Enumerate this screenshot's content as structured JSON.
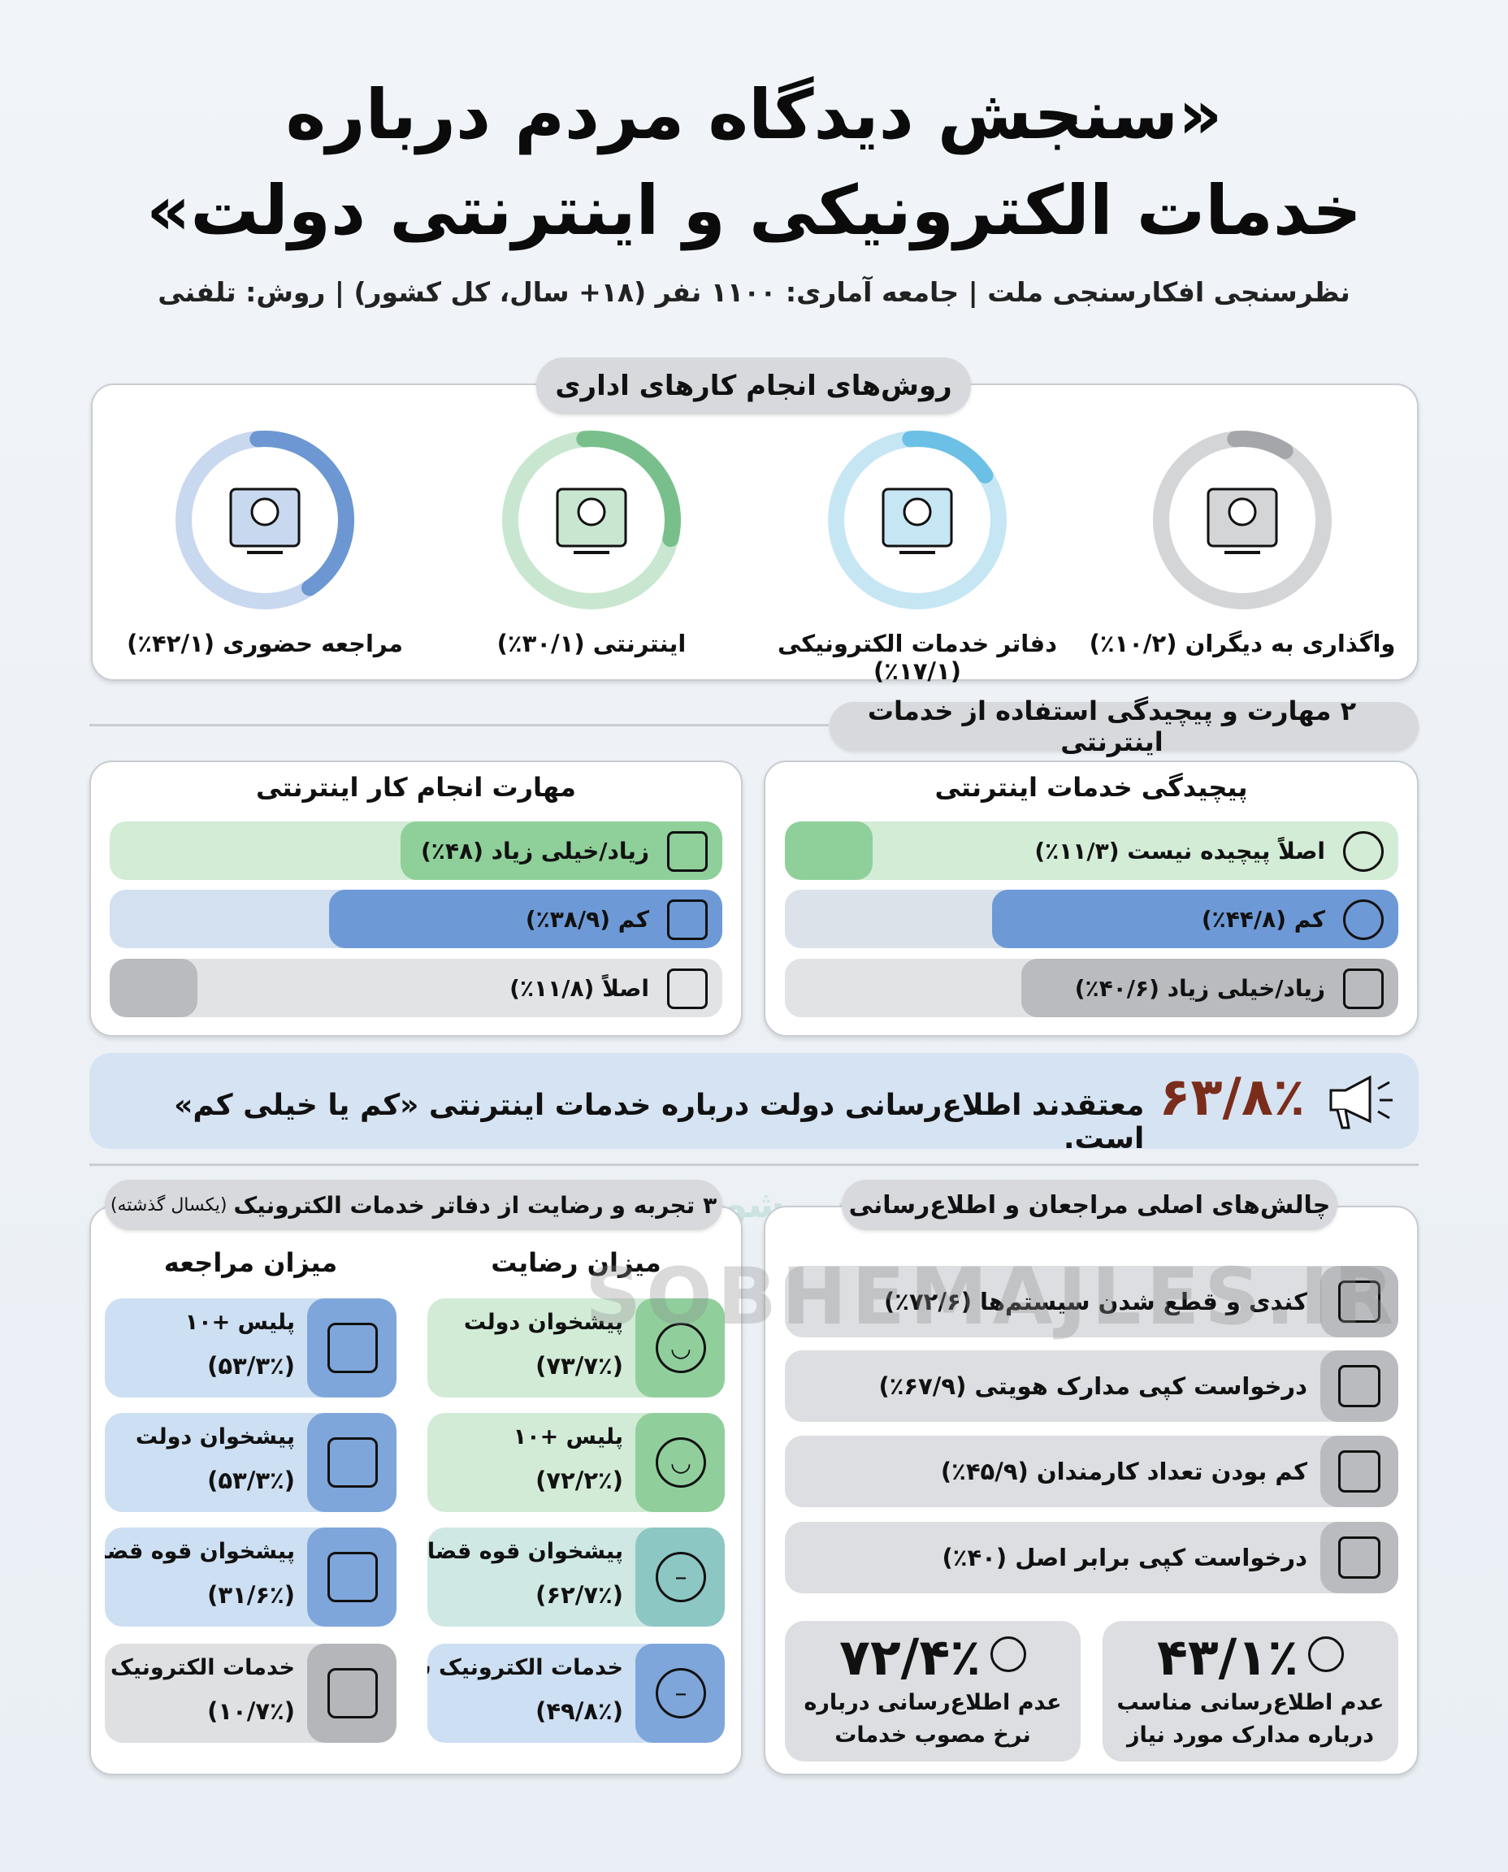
{
  "header": {
    "title_line1": "«سنجش دیدگاه مردم درباره",
    "title_line2": "خدمات الکترونیکی و اینترنتی دولت»",
    "subtitle": "نظرسنجی افکارسنجی ملت | جامعه آماری: ۱۱۰۰ نفر (۱۸+ سال، کل کشور) | روش: تلفنی"
  },
  "section1": {
    "title": "روش‌های انجام کارهای اداری",
    "methods": [
      {
        "label": "واگذاری به دیگران (۱۰/۲٪)",
        "value": 10.2,
        "icon": "people-talking-icon",
        "track": "#d4d5d7",
        "arc": "#a5a6a9"
      },
      {
        "label": "دفاتر خدمات الکترونیکی (۱۷/۱٪)",
        "value": 17.1,
        "icon": "service-kiosk-icon",
        "track": "#c6e6f4",
        "arc": "#6cc0e5"
      },
      {
        "label": "اینترنتی (۳۰/۱٪)",
        "value": 30.1,
        "icon": "globe-monitor-icon",
        "track": "#c9e7d0",
        "arc": "#78bf8c"
      },
      {
        "label": "مراجعه حضوری (۴۲/۱٪)",
        "value": 42.1,
        "icon": "office-desk-clock-icon",
        "track": "#c8d8ef",
        "arc": "#6d97d2"
      }
    ]
  },
  "section2": {
    "title": "۲ مهارت و پیچیدگی استفاده از خدمات اینترنتی",
    "complexity": {
      "title": "پیچیدگی خدمات اینترنتی",
      "items": [
        {
          "label": "اصلاً پیچیده نیست (۱۱/۳٪)",
          "value": 11.3,
          "icon": "check-circle-icon"
        },
        {
          "label": "کم (۴۴/۸٪)",
          "value": 44.8,
          "icon": "question-circle-icon"
        },
        {
          "label": "زیاد/خیلی زیاد (۴۰/۶٪)",
          "value": 40.6,
          "icon": "maze-icon"
        }
      ]
    },
    "skill": {
      "title": "مهارت انجام کار اینترنتی",
      "items": [
        {
          "label": "زیاد/خیلی زیاد (۴۸٪)",
          "value": 48,
          "icon": "brain-icon"
        },
        {
          "label": "کم (۳۸/۹٪)",
          "value": 38.9,
          "icon": "gear-icon"
        },
        {
          "label": "اصلاً (۱۱/۸٪)",
          "value": 11.8,
          "icon": "browser-window-icon"
        }
      ]
    }
  },
  "banner": {
    "percent": "۶۳/۸٪",
    "text": "معتقدند اطلاع‌رسانی دولت درباره خدمات اینترنتی «کم یا خیلی کم» است.",
    "icon": "megaphone-icon"
  },
  "section3": {
    "title": "۳ تجربه و رضایت از دفاتر خدمات الکترونیک",
    "title_note": "(یکسال گذشته)",
    "satisfaction": {
      "heading": "میزان رضایت",
      "items": [
        {
          "name": "پیشخوان دولت",
          "value": "(۷۳/۷٪)",
          "icon": "smile-face-icon"
        },
        {
          "name": "پلیس +۱۰",
          "value": "(۷۲/۲٪)",
          "icon": "smile-face-icon"
        },
        {
          "name": "پیشخوان قوه قضائیه",
          "value": "(۶۲/۷٪)",
          "icon": "neutral-face-icon"
        },
        {
          "name": "خدمات الکترونیک شهر",
          "value": "(۴۹/۸٪)",
          "icon": "neutral-face-icon"
        }
      ]
    },
    "referral": {
      "heading": "میزان مراجعه",
      "items": [
        {
          "name": "پلیس +۱۰",
          "value": "(۵۳/۳٪)",
          "icon": "police-badge-icon"
        },
        {
          "name": "پیشخوان دولت",
          "value": "(۵۳/۳٪)",
          "icon": "iran-emblem-icon"
        },
        {
          "name": "پیشخوان قوه قضائیه",
          "value": "(۳۱/۶٪)",
          "icon": "scales-icon"
        },
        {
          "name": "خدمات الکترونیک شهر",
          "value": "(۱۰/۷٪)",
          "icon": "city-buildings-icon"
        }
      ]
    }
  },
  "section4": {
    "title": "چالش‌های اصلی مراجعان و اطلاع‌رسانی",
    "items": [
      {
        "label": "کندی و قطع شدن سیستم‌ها (۷۲/۶٪)",
        "icon": "warning-icon"
      },
      {
        "label": "درخواست کپی مدارک هویتی (۶۷/۹٪)",
        "icon": "id-card-icon"
      },
      {
        "label": "کم بودن تعداد کارمندان (۴۵/۹٪)",
        "icon": "staff-group-icon"
      },
      {
        "label": "درخواست کپی برابر اصل (۴۰٪)",
        "icon": "stamped-document-icon"
      }
    ],
    "stats": [
      {
        "value": "۴۳/۱٪",
        "line1": "عدم اطلاع‌رسانی مناسب",
        "line2": "درباره مدارک مورد نیاز",
        "icon": "list-bubble-icon"
      },
      {
        "value": "۷۲/۴٪",
        "line1": "عدم اطلاع‌رسانی درباره",
        "line2": "نرخ مصوب خدمات",
        "icon": "info-bubble-icon"
      }
    ]
  },
  "watermark": {
    "latin": "SOBHEMAJLES.IR",
    "persian": "پوشش خبری مجلس شورای اسلامی"
  },
  "colors": {
    "background": "#eef2f7",
    "green": "#8fcf9a",
    "blue": "#6d9ad6",
    "gray": "#b9bbbf"
  }
}
